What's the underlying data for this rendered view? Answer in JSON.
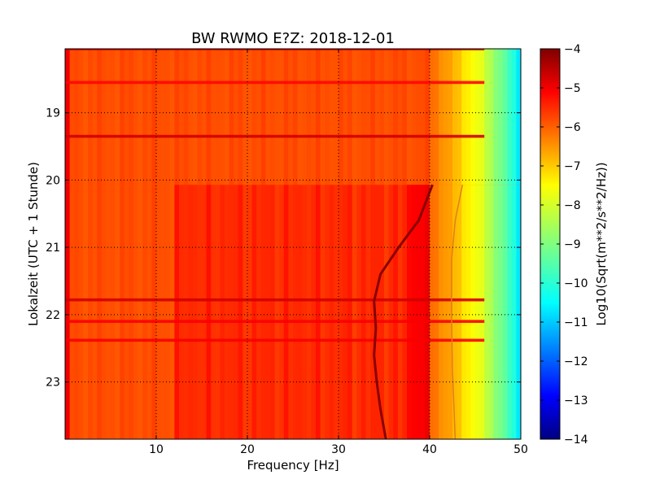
{
  "chart_data": {
    "type": "heatmap",
    "title": "BW RWMO E?Z: 2018-12-01",
    "xlabel": "Frequency [Hz]",
    "ylabel": "Lokalzeit (UTC + 1 Stunde)",
    "xlim": [
      0,
      50
    ],
    "ylim": [
      18.05,
      23.85
    ],
    "x_ticks": [
      10,
      20,
      30,
      40,
      50
    ],
    "y_ticks": [
      19,
      20,
      21,
      22,
      23
    ],
    "y_inverted": true,
    "grid": true,
    "colormap": "jet",
    "colorbar": {
      "label": "Log10(Sqrt(m**2/s**2/Hz))",
      "range": [
        -14,
        -4
      ],
      "ticks": [
        -4,
        -5,
        -6,
        -7,
        -8,
        -9,
        -10,
        -11,
        -12,
        -13,
        -14
      ]
    },
    "background_level": -6,
    "rolloff": [
      {
        "freq": 40,
        "value": -6.2
      },
      {
        "freq": 42,
        "value": -6.8
      },
      {
        "freq": 44,
        "value": -7.5
      },
      {
        "freq": 46,
        "value": -8.2
      },
      {
        "freq": 48,
        "value": -9.2
      },
      {
        "freq": 50,
        "value": -10.5
      }
    ],
    "band_change_time": 20.07,
    "horizontal_events": [
      {
        "time": 18.05,
        "value": -4.7
      },
      {
        "time": 18.55,
        "value": -5.3
      },
      {
        "time": 19.35,
        "value": -4.8
      },
      {
        "time": 21.78,
        "value": -4.8
      },
      {
        "time": 22.1,
        "value": -5.2
      },
      {
        "time": 22.38,
        "value": -5.2
      }
    ],
    "tonal_line_left": [
      {
        "time": 20.07,
        "freq": 40.3
      },
      {
        "time": 20.6,
        "freq": 38.8
      },
      {
        "time": 21.0,
        "freq": 36.6
      },
      {
        "time": 21.4,
        "freq": 34.6
      },
      {
        "time": 21.8,
        "freq": 33.9
      },
      {
        "time": 22.2,
        "freq": 34.1
      },
      {
        "time": 22.6,
        "freq": 33.9
      },
      {
        "time": 23.0,
        "freq": 34.2
      },
      {
        "time": 23.4,
        "freq": 34.6
      },
      {
        "time": 23.85,
        "freq": 35.2
      }
    ],
    "tonal_line_right": [
      {
        "time": 20.07,
        "freq": 43.6
      },
      {
        "time": 20.6,
        "freq": 42.8
      },
      {
        "time": 21.2,
        "freq": 42.4
      },
      {
        "time": 22.0,
        "freq": 42.4
      },
      {
        "time": 22.8,
        "freq": 42.5
      },
      {
        "time": 23.85,
        "freq": 42.8
      }
    ]
  }
}
